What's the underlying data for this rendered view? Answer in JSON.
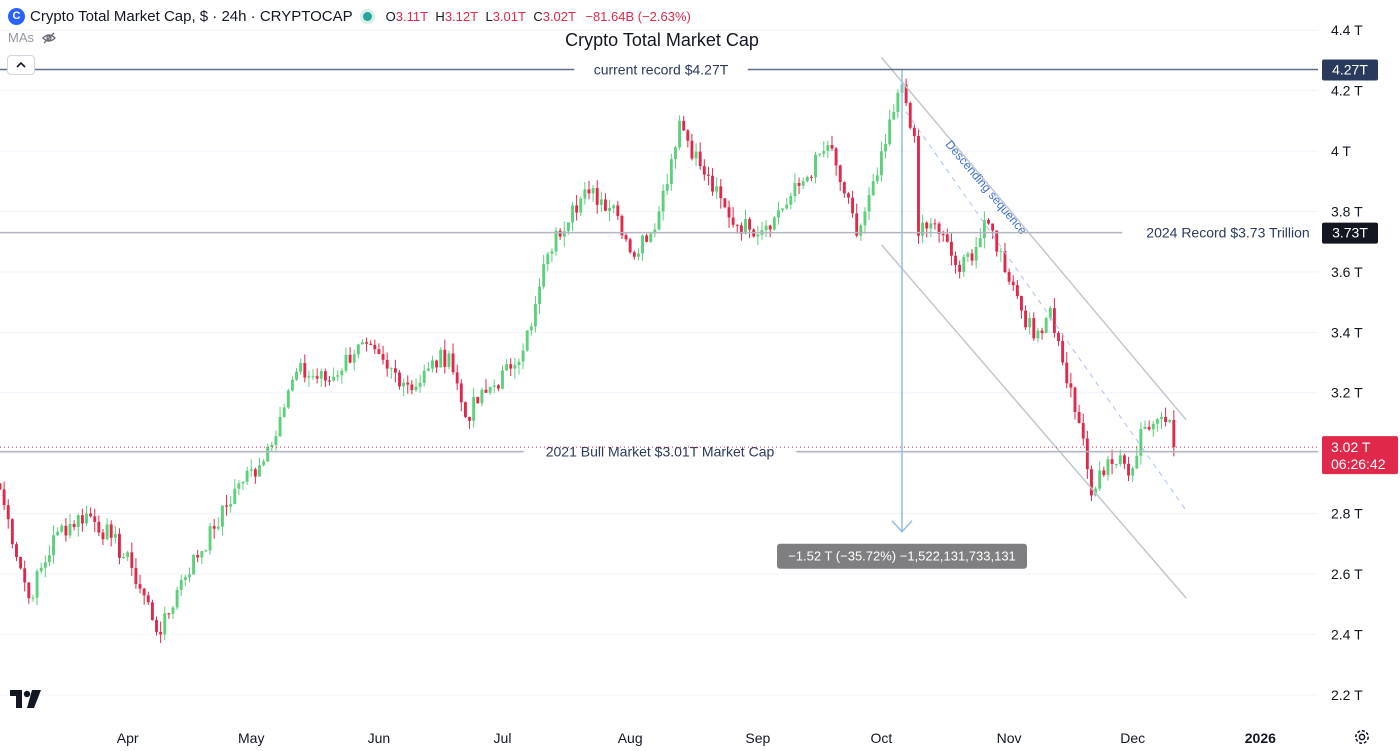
{
  "header": {
    "logo_glyph": "C",
    "symbol": "Crypto Total Market Cap, $ · 24h · CRYPTOCAP",
    "ohlc": [
      {
        "key": "O",
        "value": "3.11T"
      },
      {
        "key": "H",
        "value": "3.12T"
      },
      {
        "key": "L",
        "value": "3.01T"
      },
      {
        "key": "C",
        "value": "3.02T"
      }
    ],
    "change": "−81.64B (−2.63%)",
    "mas_label": "MAs",
    "icons": [
      "hide-eye-icon",
      "chevron-up-icon",
      "tradingview-logo-icon",
      "settings-gear-icon"
    ]
  },
  "chart_data": {
    "type": "candlestick",
    "title": "Crypto Total Market Cap",
    "y_unit": "T",
    "ylim": [
      2.13,
      4.5
    ],
    "xlim": [
      "2025-03-01",
      "2026-01-15"
    ],
    "x_tick_labels": [
      "Apr",
      "May",
      "Jun",
      "Jul",
      "Aug",
      "Sep",
      "Oct",
      "Nov",
      "Dec",
      "2026"
    ],
    "x_tick_dates": [
      "2025-04-01",
      "2025-05-01",
      "2025-06-01",
      "2025-07-01",
      "2025-08-01",
      "2025-09-01",
      "2025-10-01",
      "2025-11-01",
      "2025-12-01",
      "2026-01-01"
    ],
    "y_tick_labels": [
      "2.2 T",
      "2.4 T",
      "2.6 T",
      "2.8 T",
      "3 T",
      "3.2 T",
      "3.4 T",
      "3.6 T",
      "3.8 T",
      "4 T",
      "4.2 T",
      "4.4 T"
    ],
    "y_tick_values": [
      2.2,
      2.4,
      2.6,
      2.8,
      3.0,
      3.2,
      3.4,
      3.6,
      3.8,
      4.0,
      4.2,
      4.4
    ],
    "colors": {
      "up": "#26a69a",
      "up_fill": "#5cd07a",
      "down": "#e0294a",
      "grid": "#f0f3fa",
      "hline": "#b2b5be",
      "record": "#5d6d8a",
      "channel": "#c3c6ce",
      "measure": "#90bfe3",
      "current": "#e0294a"
    },
    "horizontal_lines": [
      {
        "label": "current record $4.27T",
        "value": 4.27,
        "badge": "4.27T",
        "badge_color": "#2a3a5c"
      },
      {
        "label": "2024 Record $3.73 Trillion",
        "value": 3.73,
        "badge": "3.73T",
        "badge_color": "#131722"
      },
      {
        "label": "2021 Bull Market $3.01T Market Cap",
        "value": 3.005,
        "badge": "3.01T",
        "badge_color": "#131722"
      }
    ],
    "current_price": {
      "value": 3.02,
      "label": "3.02 T",
      "countdown": "06:26:42"
    },
    "channel": {
      "upper": [
        [
          "2025-10-01",
          4.31
        ],
        [
          "2025-12-14",
          3.11
        ]
      ],
      "lower": [
        [
          "2025-10-01",
          3.69
        ],
        [
          "2025-12-14",
          2.52
        ]
      ],
      "mid": [
        [
          "2025-10-07",
          4.13
        ],
        [
          "2025-12-14",
          2.81
        ]
      ]
    },
    "channel_label": "Descending sequence",
    "measure": {
      "from_date": "2025-10-06",
      "from_value": 4.27,
      "to_value": 2.74,
      "label": "−1.52 T (−35.72%) −1,522,131,733,131"
    },
    "anchors": [
      [
        "2025-03-01",
        2.88
      ],
      [
        "2025-03-08",
        2.52
      ],
      [
        "2025-03-15",
        2.74
      ],
      [
        "2025-03-22",
        2.8
      ],
      [
        "2025-03-28",
        2.72
      ],
      [
        "2025-04-02",
        2.62
      ],
      [
        "2025-04-09",
        2.4
      ],
      [
        "2025-04-14",
        2.58
      ],
      [
        "2025-04-22",
        2.75
      ],
      [
        "2025-04-28",
        2.9
      ],
      [
        "2025-05-03",
        2.96
      ],
      [
        "2025-05-08",
        3.12
      ],
      [
        "2025-05-12",
        3.27
      ],
      [
        "2025-05-20",
        3.24
      ],
      [
        "2025-05-27",
        3.36
      ],
      [
        "2025-06-03",
        3.28
      ],
      [
        "2025-06-10",
        3.22
      ],
      [
        "2025-06-13",
        3.28
      ],
      [
        "2025-06-18",
        3.33
      ],
      [
        "2025-06-22",
        3.12
      ],
      [
        "2025-06-27",
        3.2
      ],
      [
        "2025-07-03",
        3.28
      ],
      [
        "2025-07-08",
        3.42
      ],
      [
        "2025-07-12",
        3.66
      ],
      [
        "2025-07-18",
        3.82
      ],
      [
        "2025-07-22",
        3.86
      ],
      [
        "2025-07-28",
        3.82
      ],
      [
        "2025-08-02",
        3.65
      ],
      [
        "2025-08-08",
        3.8
      ],
      [
        "2025-08-13",
        4.1
      ],
      [
        "2025-08-18",
        3.95
      ],
      [
        "2025-08-25",
        3.78
      ],
      [
        "2025-08-30",
        3.74
      ],
      [
        "2025-09-05",
        3.78
      ],
      [
        "2025-09-12",
        3.9
      ],
      [
        "2025-09-18",
        4.02
      ],
      [
        "2025-09-22",
        3.86
      ],
      [
        "2025-09-25",
        3.72
      ],
      [
        "2025-09-30",
        3.92
      ],
      [
        "2025-10-06",
        4.22
      ],
      [
        "2025-10-09",
        4.05
      ],
      [
        "2025-10-10",
        3.72
      ],
      [
        "2025-10-14",
        3.76
      ],
      [
        "2025-10-20",
        3.6
      ],
      [
        "2025-10-27",
        3.76
      ],
      [
        "2025-11-03",
        3.52
      ],
      [
        "2025-11-07",
        3.38
      ],
      [
        "2025-11-11",
        3.48
      ],
      [
        "2025-11-14",
        3.3
      ],
      [
        "2025-11-18",
        3.1
      ],
      [
        "2025-11-21",
        2.86
      ],
      [
        "2025-11-25",
        2.98
      ],
      [
        "2025-12-01",
        2.95
      ],
      [
        "2025-12-03",
        3.08
      ],
      [
        "2025-12-08",
        3.12
      ],
      [
        "2025-12-10",
        3.11
      ],
      [
        "2025-12-11",
        3.02
      ]
    ]
  }
}
